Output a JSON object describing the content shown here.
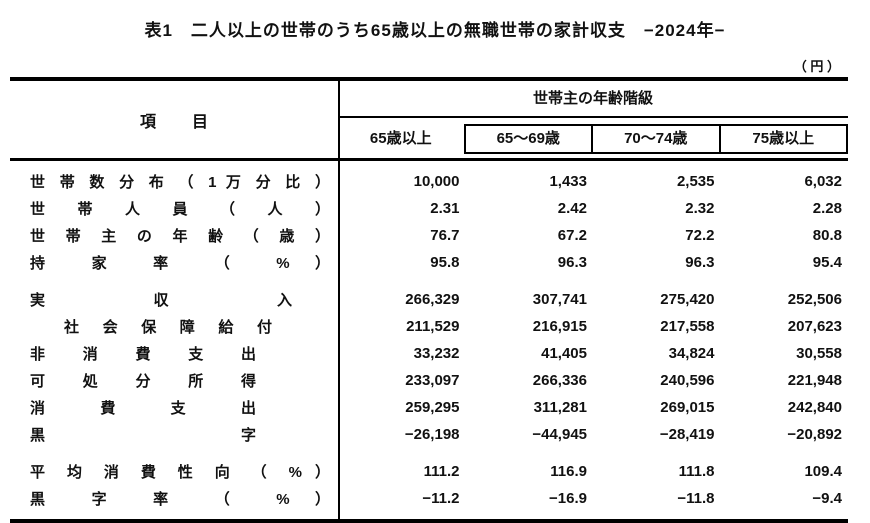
{
  "page": {
    "title": "表1　二人以上の世帯のうち65歳以上の無職世帯の家計収支　−2024年−",
    "unit_note": "（ 円 ）"
  },
  "table": {
    "header": {
      "item_label": "項　目",
      "group_label": "世帯主の年齢階級",
      "columns": [
        "65歳以上",
        "65〜69歳",
        "70〜74歳",
        "75歳以上"
      ]
    },
    "rows": [
      {
        "label": "世 帯 数 分 布 （ 1 万 分 比 ）",
        "values": [
          "10,000",
          "1,433",
          "2,535",
          "6,032"
        ]
      },
      {
        "label": "世 帯 人 員 （ 人 ）",
        "values": [
          "2.31",
          "2.42",
          "2.32",
          "2.28"
        ]
      },
      {
        "label": "世 帯 主 の 年 齢 （ 歳 ）",
        "values": [
          "76.7",
          "67.2",
          "72.2",
          "80.8"
        ]
      },
      {
        "label": "持 家 率 （ % ）",
        "values": [
          "95.8",
          "96.3",
          "96.3",
          "95.4"
        ]
      },
      {
        "label": "実 収 入",
        "values": [
          "266,329",
          "307,741",
          "275,420",
          "252,506"
        ]
      },
      {
        "label": "社 会 保 障 給 付",
        "values": [
          "211,529",
          "216,915",
          "217,558",
          "207,623"
        ]
      },
      {
        "label": "非 消 費 支 出",
        "values": [
          "33,232",
          "41,405",
          "34,824",
          "30,558"
        ]
      },
      {
        "label": "可 処 分 所 得",
        "values": [
          "233,097",
          "266,336",
          "240,596",
          "221,948"
        ]
      },
      {
        "label": "消 費 支 出",
        "values": [
          "259,295",
          "311,281",
          "269,015",
          "242,840"
        ]
      },
      {
        "label": "黒 字",
        "values": [
          "−26,198",
          "−44,945",
          "−28,419",
          "−20,892"
        ]
      },
      {
        "label": "平 均 消 費 性 向 （ % ）",
        "values": [
          "111.2",
          "116.9",
          "111.8",
          "109.4"
        ]
      },
      {
        "label": "黒 字 率 （ % ）",
        "values": [
          "−11.2",
          "−16.9",
          "−11.8",
          "−9.4"
        ]
      }
    ]
  }
}
